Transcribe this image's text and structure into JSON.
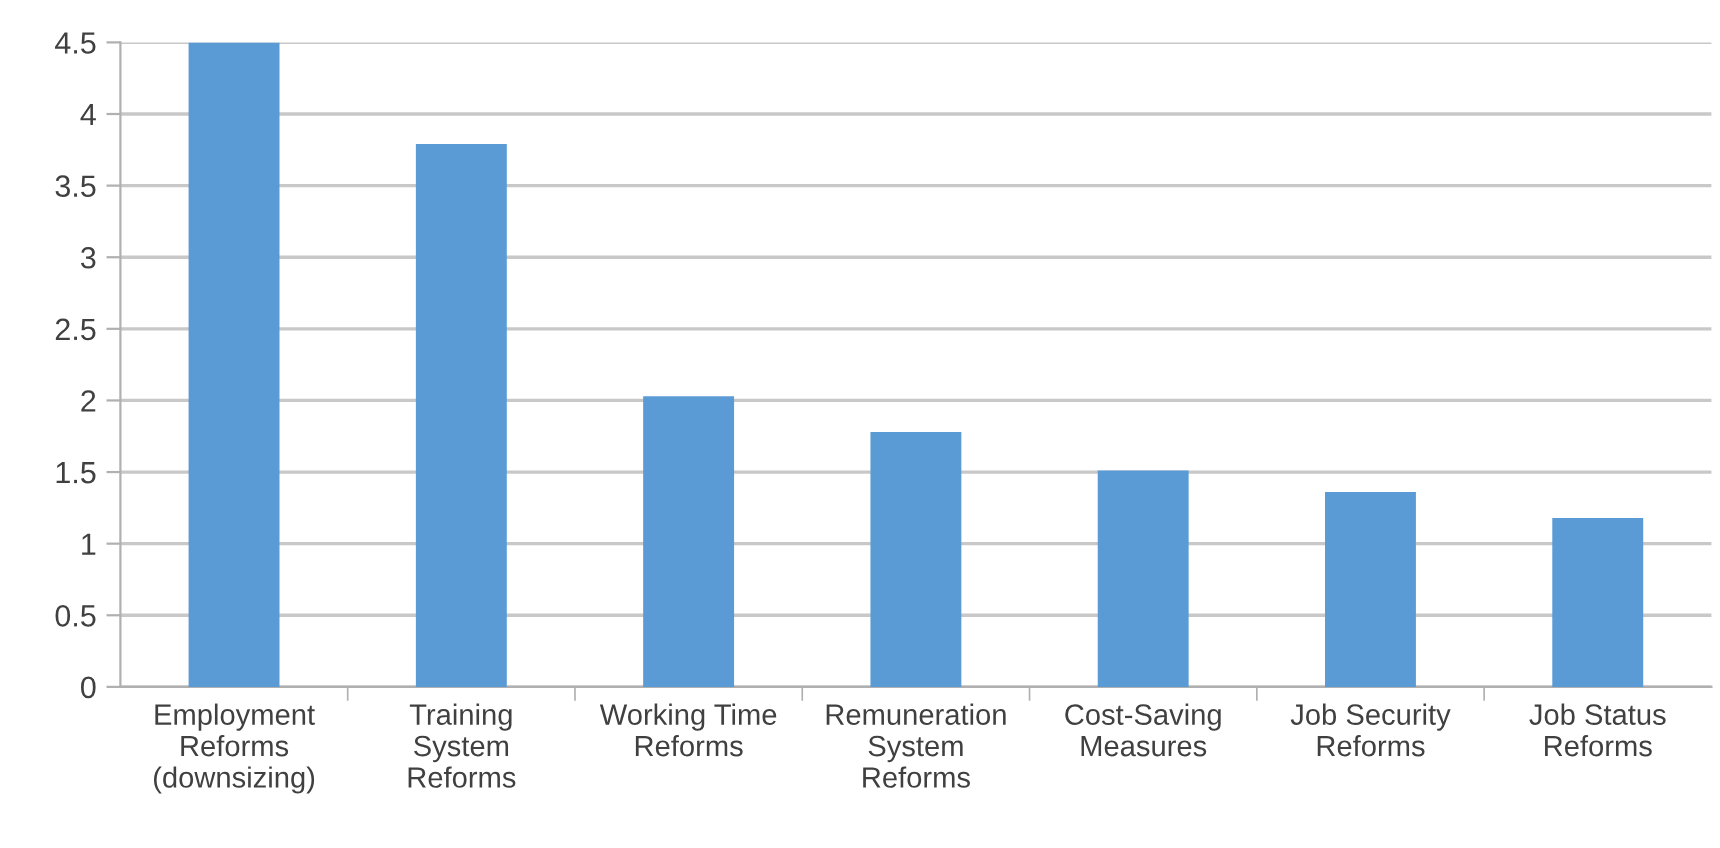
{
  "chart_data": {
    "type": "bar",
    "categories": [
      "Employment\nReforms\n(downsizing)",
      "Training\nSystem\nReforms",
      "Working Time\nReforms",
      "Remuneration\nSystem\nReforms",
      "Cost-Saving\nMeasures",
      "Job Security\nReforms",
      "Job Status\nReforms"
    ],
    "values": [
      4.5,
      3.79,
      2.03,
      1.78,
      1.51,
      1.36,
      1.18
    ],
    "color": "#5b9bd5",
    "ylim": [
      0,
      4.5
    ],
    "yticks": [
      0,
      0.5,
      1,
      1.5,
      2,
      2.5,
      3,
      3.5,
      4,
      4.5
    ],
    "grid": "y"
  }
}
